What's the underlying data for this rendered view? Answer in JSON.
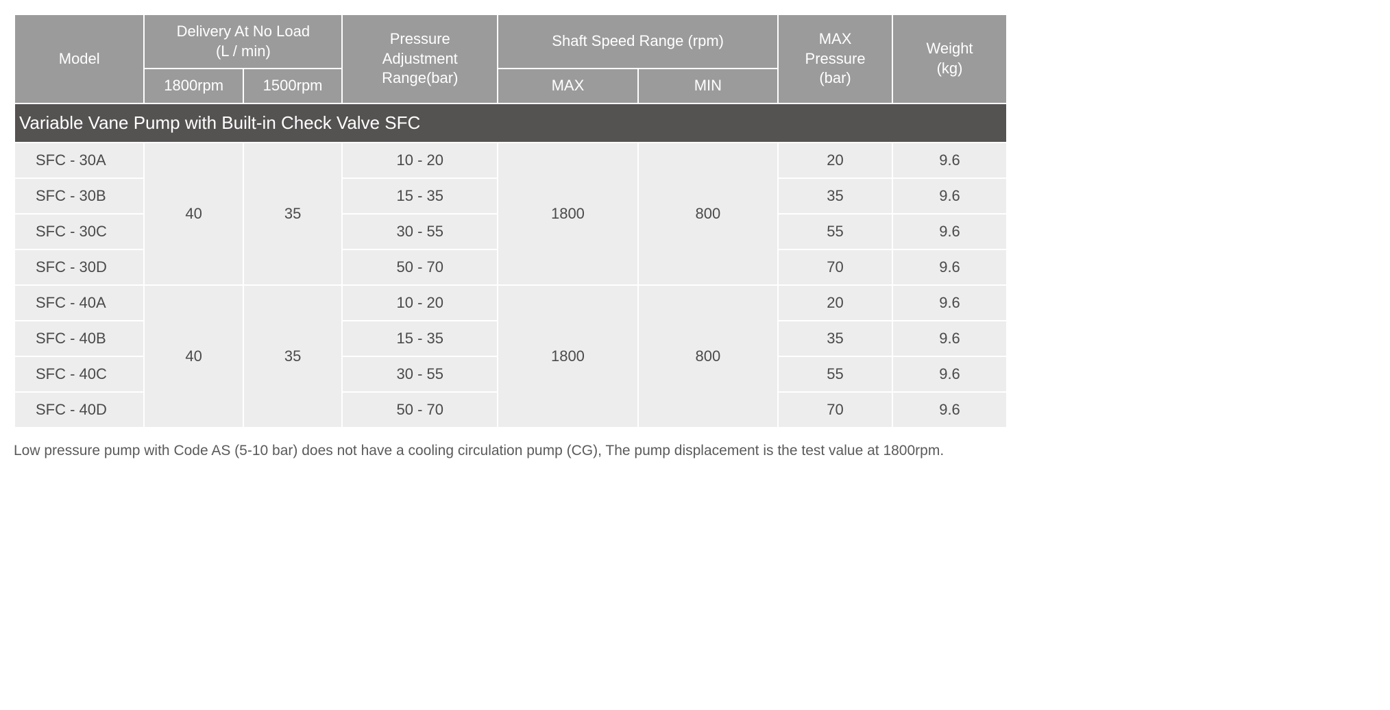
{
  "headers": {
    "model": "Model",
    "delivery_group": "Delivery At No Load\n(L / min)",
    "delivery_1800": "1800rpm",
    "delivery_1500": "1500rpm",
    "pressure_adj": "Pressure\nAdjustment\nRange(bar)",
    "shaft_group": "Shaft Speed Range (rpm)",
    "shaft_max": "MAX",
    "shaft_min": "MIN",
    "max_pressure": "MAX\nPressure\n(bar)",
    "weight": "Weight\n(kg)"
  },
  "section_title": "Variable Vane Pump with Built-in Check Valve SFC",
  "groups": [
    {
      "delivery_1800": "40",
      "delivery_1500": "35",
      "shaft_max": "1800",
      "shaft_min": "800",
      "rows": [
        {
          "model": "SFC - 30A",
          "pressure_adj": "10 - 20",
          "max_pressure": "20",
          "weight": "9.6"
        },
        {
          "model": "SFC - 30B",
          "pressure_adj": "15 - 35",
          "max_pressure": "35",
          "weight": "9.6"
        },
        {
          "model": "SFC - 30C",
          "pressure_adj": "30 - 55",
          "max_pressure": "55",
          "weight": "9.6"
        },
        {
          "model": "SFC - 30D",
          "pressure_adj": "50 - 70",
          "max_pressure": "70",
          "weight": "9.6"
        }
      ]
    },
    {
      "delivery_1800": "40",
      "delivery_1500": "35",
      "shaft_max": "1800",
      "shaft_min": "800",
      "rows": [
        {
          "model": "SFC - 40A",
          "pressure_adj": "10 - 20",
          "max_pressure": "20",
          "weight": "9.6"
        },
        {
          "model": "SFC - 40B",
          "pressure_adj": "15 - 35",
          "max_pressure": "35",
          "weight": "9.6"
        },
        {
          "model": "SFC - 40C",
          "pressure_adj": "30 - 55",
          "max_pressure": "55",
          "weight": "9.6"
        },
        {
          "model": "SFC - 40D",
          "pressure_adj": "50 - 70",
          "max_pressure": "70",
          "weight": "9.6"
        }
      ]
    }
  ],
  "footnote": "Low pressure pump with Code AS (5-10 bar) does not have a cooling circulation pump (CG), The pump displacement is the test value at 1800rpm.",
  "styling": {
    "header_bg": "#9b9b9b",
    "header_fg": "#ffffff",
    "cell_bg": "#ededed",
    "cell_fg": "#4a4a4a",
    "section_bg": "#555252",
    "section_fg": "#ffffff",
    "footnote_fg": "#5a5a5a",
    "header_fontsize": 22,
    "cell_fontsize": 22,
    "section_fontsize": 26,
    "footnote_fontsize": 21,
    "border_spacing": 2
  }
}
